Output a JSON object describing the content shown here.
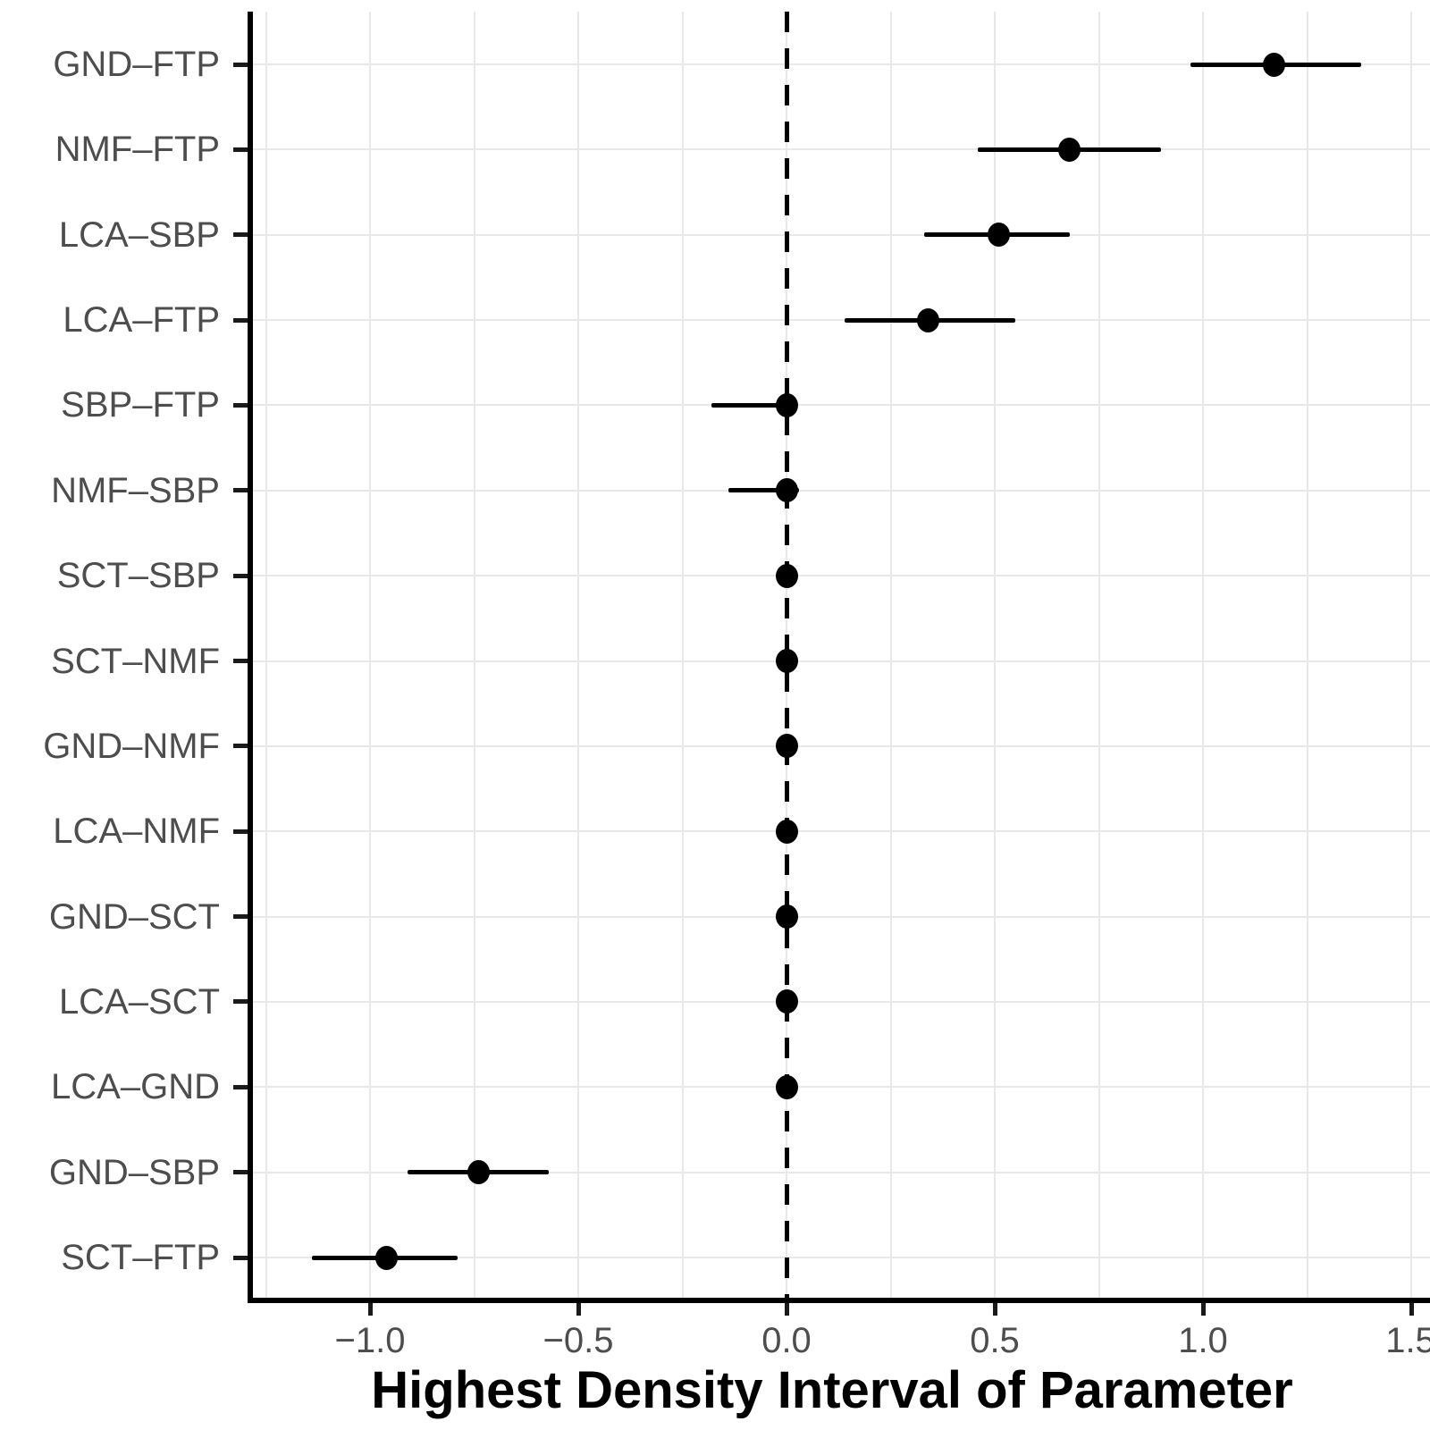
{
  "chart_data": {
    "type": "scatter",
    "subtype": "forest-interval-plot",
    "title": "",
    "xlabel": "Highest Density Interval of Parameter",
    "ylabel": "",
    "legend_position": "none",
    "grid": {
      "vertical_step": 0.25,
      "horizontal": "one line per category"
    },
    "reference_line": {
      "x": 0.0,
      "style": "dashed",
      "color": "#000000"
    },
    "xlim": [
      -1.28,
      1.55
    ],
    "x_ticks": {
      "values": [
        -1.0,
        -0.5,
        0.0,
        0.5,
        1.0,
        1.5
      ],
      "labels": [
        "−1.0",
        "−0.5",
        "0.0",
        "0.5",
        "1.0",
        "1.5"
      ]
    },
    "categories": [
      "GND–FTP",
      "NMF–FTP",
      "LCA–SBP",
      "LCA–FTP",
      "SBP–FTP",
      "NMF–SBP",
      "SCT–SBP",
      "SCT–NMF",
      "GND–NMF",
      "LCA–NMF",
      "GND–SCT",
      "LCA–SCT",
      "LCA–GND",
      "GND–SBP",
      "SCT–FTP"
    ],
    "rows": [
      {
        "label": "GND–FTP",
        "mean": 1.17,
        "lower": 0.97,
        "upper": 1.38
      },
      {
        "label": "NMF–FTP",
        "mean": 0.68,
        "lower": 0.46,
        "upper": 0.9
      },
      {
        "label": "LCA–SBP",
        "mean": 0.51,
        "lower": 0.33,
        "upper": 0.68
      },
      {
        "label": "LCA–FTP",
        "mean": 0.34,
        "lower": 0.14,
        "upper": 0.55
      },
      {
        "label": "SBP–FTP",
        "mean": 0.0,
        "lower": -0.18,
        "upper": 0.02
      },
      {
        "label": "NMF–SBP",
        "mean": 0.0,
        "lower": -0.14,
        "upper": 0.03
      },
      {
        "label": "SCT–SBP",
        "mean": 0.0,
        "lower": -0.02,
        "upper": 0.02
      },
      {
        "label": "SCT–NMF",
        "mean": 0.0,
        "lower": -0.02,
        "upper": 0.02
      },
      {
        "label": "GND–NMF",
        "mean": 0.0,
        "lower": -0.01,
        "upper": 0.01
      },
      {
        "label": "LCA–NMF",
        "mean": 0.0,
        "lower": -0.02,
        "upper": 0.02
      },
      {
        "label": "GND–SCT",
        "mean": 0.0,
        "lower": -0.01,
        "upper": 0.02
      },
      {
        "label": "LCA–SCT",
        "mean": 0.0,
        "lower": -0.02,
        "upper": 0.02
      },
      {
        "label": "LCA–GND",
        "mean": 0.0,
        "lower": -0.01,
        "upper": 0.01
      },
      {
        "label": "GND–SBP",
        "mean": -0.74,
        "lower": -0.91,
        "upper": -0.57
      },
      {
        "label": "SCT–FTP",
        "mean": -0.96,
        "lower": -1.14,
        "upper": -0.79
      }
    ],
    "colors": {
      "point": "#000000",
      "interval": "#000000",
      "grid": "#e8e8e8",
      "axis": "#000000",
      "tick_label": "#4d4d4d",
      "category_label": "#4d4d4d",
      "axis_title": "#000000",
      "background": "#ffffff"
    }
  }
}
